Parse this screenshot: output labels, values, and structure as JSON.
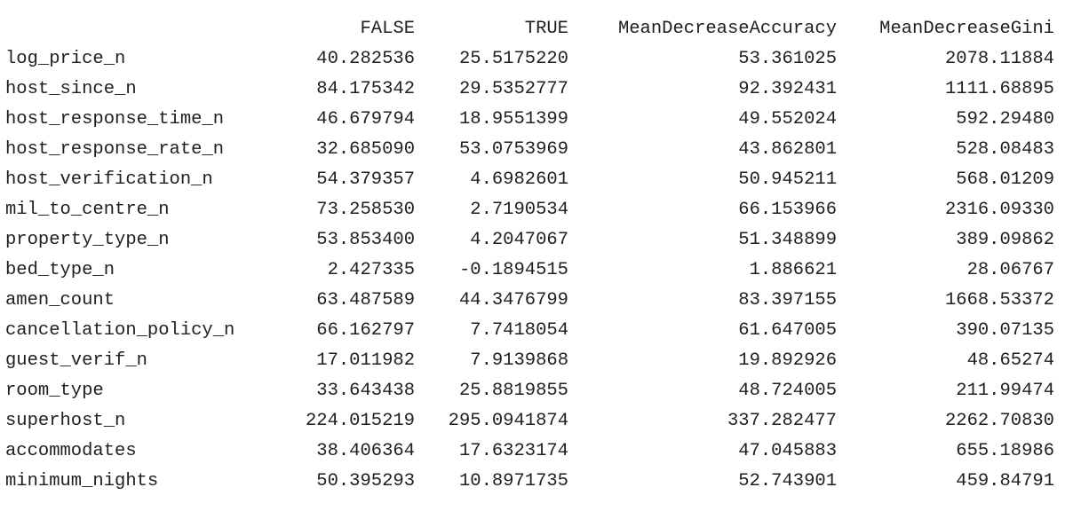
{
  "table": {
    "columns": [
      "FALSE",
      "TRUE",
      "MeanDecreaseAccuracy",
      "MeanDecreaseGini"
    ],
    "rows": [
      {
        "name": "log_price_n",
        "values": [
          "40.282536",
          "25.5175220",
          "53.361025",
          "2078.11884"
        ]
      },
      {
        "name": "host_since_n",
        "values": [
          "84.175342",
          "29.5352777",
          "92.392431",
          "1111.68895"
        ]
      },
      {
        "name": "host_response_time_n",
        "values": [
          "46.679794",
          "18.9551399",
          "49.552024",
          "592.29480"
        ]
      },
      {
        "name": "host_response_rate_n",
        "values": [
          "32.685090",
          "53.0753969",
          "43.862801",
          "528.08483"
        ]
      },
      {
        "name": "host_verification_n",
        "values": [
          "54.379357",
          "4.6982601",
          "50.945211",
          "568.01209"
        ]
      },
      {
        "name": "mil_to_centre_n",
        "values": [
          "73.258530",
          "2.7190534",
          "66.153966",
          "2316.09330"
        ]
      },
      {
        "name": "property_type_n",
        "values": [
          "53.853400",
          "4.2047067",
          "51.348899",
          "389.09862"
        ]
      },
      {
        "name": "bed_type_n",
        "values": [
          "2.427335",
          "-0.1894515",
          "1.886621",
          "28.06767"
        ]
      },
      {
        "name": "amen_count",
        "values": [
          "63.487589",
          "44.3476799",
          "83.397155",
          "1668.53372"
        ]
      },
      {
        "name": "cancellation_policy_n",
        "values": [
          "66.162797",
          "7.7418054",
          "61.647005",
          "390.07135"
        ]
      },
      {
        "name": "guest_verif_n",
        "values": [
          "17.011982",
          "7.9139868",
          "19.892926",
          "48.65274"
        ]
      },
      {
        "name": "room_type",
        "values": [
          "33.643438",
          "25.8819855",
          "48.724005",
          "211.99474"
        ]
      },
      {
        "name": "superhost_n",
        "values": [
          "224.015219",
          "295.0941874",
          "337.282477",
          "2262.70830"
        ]
      },
      {
        "name": "accommodates",
        "values": [
          "38.406364",
          "17.6323174",
          "47.045883",
          "655.18986"
        ]
      },
      {
        "name": "minimum_nights",
        "values": [
          "50.395293",
          "10.8971735",
          "52.743901",
          "459.84791"
        ]
      }
    ]
  }
}
